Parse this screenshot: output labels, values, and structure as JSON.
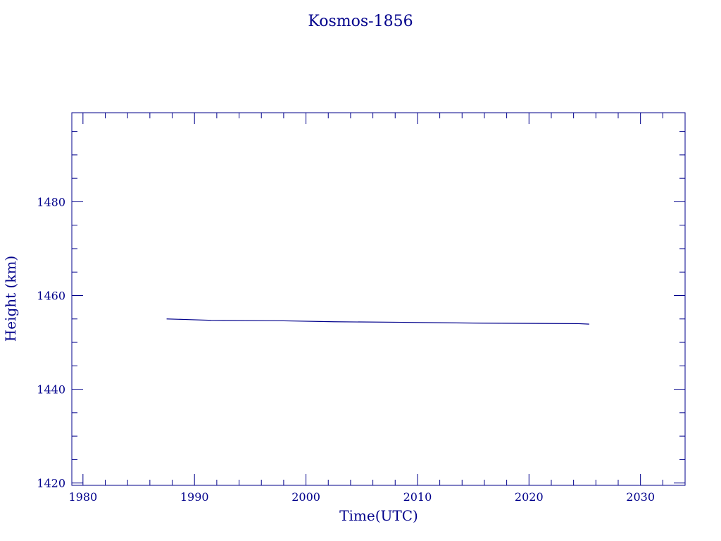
{
  "chart_data": {
    "type": "line",
    "title": "Kosmos-1856",
    "xlabel": "Time(UTC)",
    "ylabel": "Height (km)",
    "xlim": [
      1979,
      2034
    ],
    "ylim": [
      1419.5,
      1499
    ],
    "xticks": [
      1980,
      1990,
      2000,
      2010,
      2020,
      2030
    ],
    "xtick_labels": [
      "1980",
      "1990",
      "2000",
      "2010",
      "2020",
      "2030"
    ],
    "yticks": [
      1420,
      1440,
      1460,
      1480
    ],
    "ytick_labels": [
      "1420",
      "1440",
      "1460",
      "1480"
    ],
    "x_minor_step": 2,
    "y_minor_step": 5,
    "grid": false,
    "colors": {
      "axis": "#00008b",
      "line": "#00008b"
    },
    "series": [
      {
        "x": [
          1987.5,
          1989,
          1991.5,
          1998,
          2002.5,
          2008,
          2015.8,
          2024.4,
          2025.4
        ],
        "values": [
          1455.0,
          1454.9,
          1454.7,
          1454.6,
          1454.4,
          1454.3,
          1454.1,
          1454.0,
          1453.9
        ]
      }
    ]
  }
}
